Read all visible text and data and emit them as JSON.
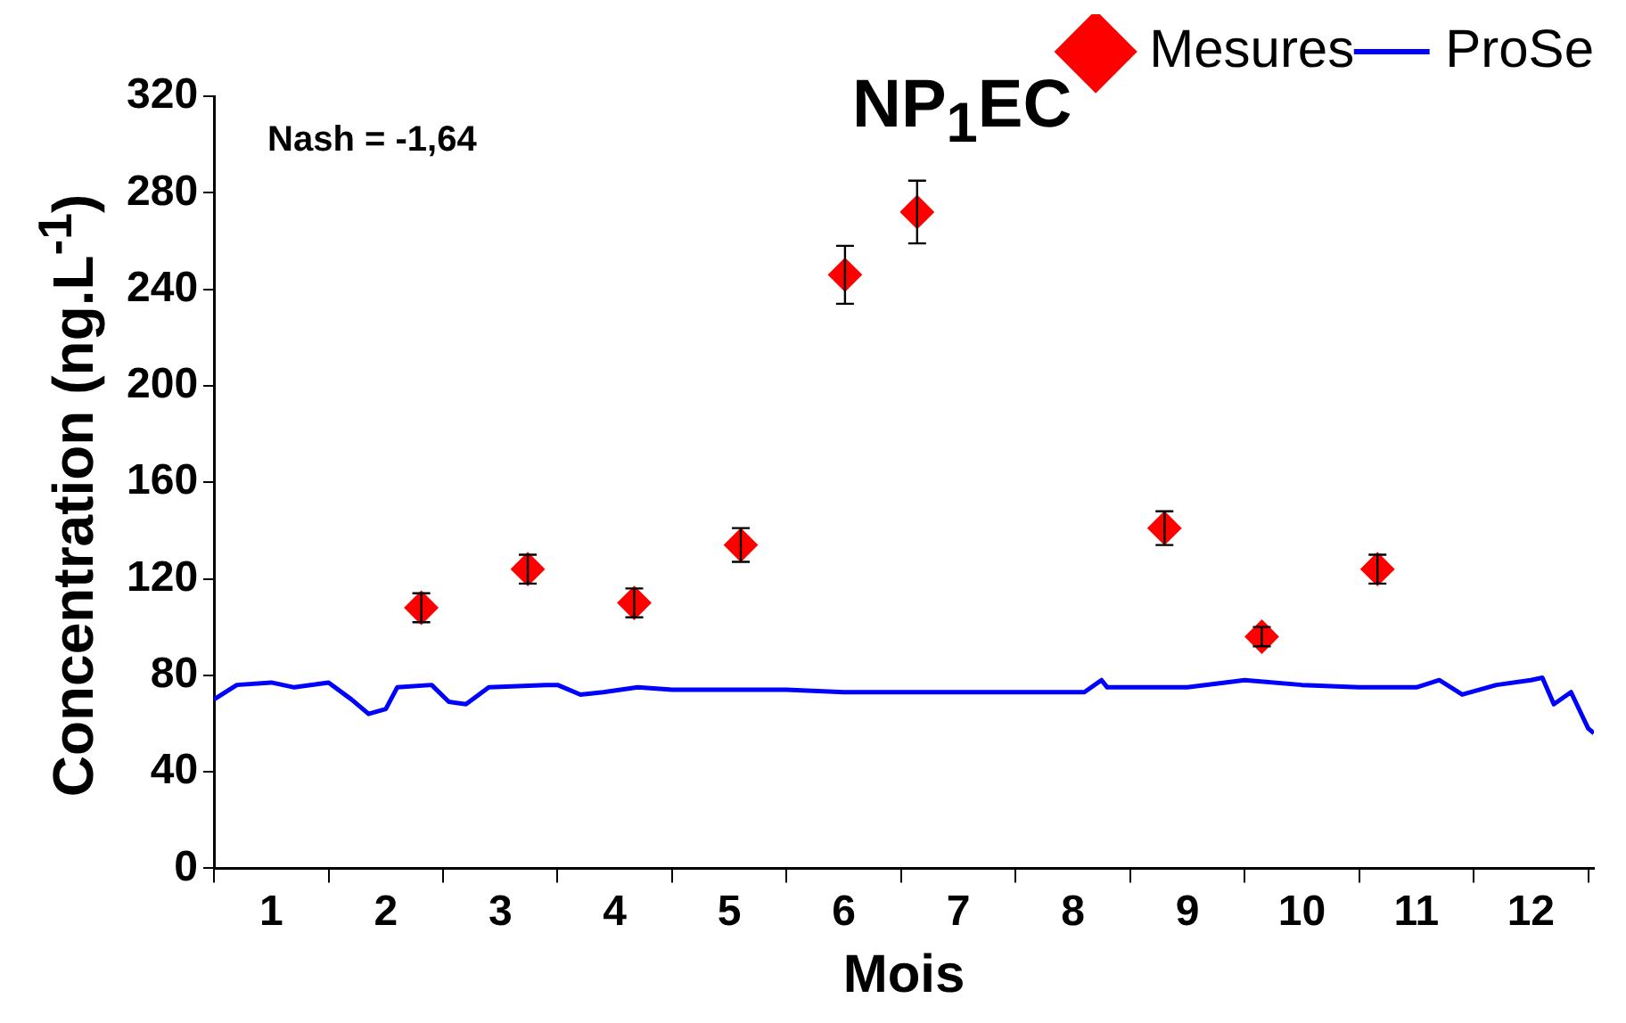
{
  "chart_data": {
    "type": "scatter",
    "title": "NP$_{1}$EC",
    "xlabel": "Mois",
    "ylabel": "Concentration (ng.L$^{-1}$)",
    "annotations": [
      "Nash = -1,64"
    ],
    "xlim": [
      0,
      12.05
    ],
    "ylim": [
      0,
      320
    ],
    "yticks": [
      0,
      40,
      80,
      120,
      160,
      200,
      240,
      280,
      320
    ],
    "xticks": [
      {
        "value": 0,
        "label": null
      },
      {
        "value": 0.5,
        "label": "1"
      },
      {
        "value": 1,
        "label": null
      },
      {
        "value": 1.5,
        "label": "2"
      },
      {
        "value": 2,
        "label": null
      },
      {
        "value": 2.5,
        "label": "3"
      },
      {
        "value": 3,
        "label": null
      },
      {
        "value": 3.5,
        "label": "4"
      },
      {
        "value": 4,
        "label": null
      },
      {
        "value": 4.5,
        "label": "5"
      },
      {
        "value": 5,
        "label": null
      },
      {
        "value": 5.5,
        "label": "6"
      },
      {
        "value": 6,
        "label": null
      },
      {
        "value": 6.5,
        "label": "7"
      },
      {
        "value": 7,
        "label": null
      },
      {
        "value": 7.5,
        "label": "8"
      },
      {
        "value": 8,
        "label": null
      },
      {
        "value": 8.5,
        "label": "9"
      },
      {
        "value": 9,
        "label": null
      },
      {
        "value": 9.5,
        "label": "10"
      },
      {
        "value": 10,
        "label": null
      },
      {
        "value": 10.5,
        "label": "11"
      },
      {
        "value": 11,
        "label": null
      },
      {
        "value": 11.5,
        "label": "12"
      },
      {
        "value": 12,
        "label": null
      }
    ],
    "grid": false,
    "legend": "top right",
    "series": [
      {
        "name": "Mesures",
        "marker": "diamond",
        "color": "#ff0000",
        "x": [
          1.81,
          2.74,
          3.67,
          4.6,
          5.51,
          6.14,
          8.3,
          9.15,
          10.16
        ],
        "values": [
          108,
          124,
          110,
          134,
          246,
          272,
          141,
          96,
          124
        ],
        "errors": [
          6,
          6,
          6,
          7,
          12,
          13,
          7,
          4,
          6
        ]
      },
      {
        "name": "ProSe",
        "type": "line",
        "marker": "none",
        "color": "#0000ff",
        "x": [
          0,
          0.2,
          0.5,
          0.7,
          1.0,
          1.2,
          1.35,
          1.5,
          1.6,
          1.9,
          2.05,
          2.2,
          2.4,
          2.9,
          3.0,
          3.2,
          3.4,
          3.7,
          4.0,
          4.5,
          5.0,
          5.5,
          6.0,
          6.5,
          7.0,
          7.6,
          7.75,
          7.8,
          8.0,
          8.5,
          9.0,
          9.5,
          10.0,
          10.5,
          10.7,
          10.9,
          11.2,
          11.5,
          11.6,
          11.7,
          11.85,
          12.0,
          12.05
        ],
        "values": [
          70,
          76,
          77,
          75,
          77,
          70,
          64,
          66,
          75,
          76,
          69,
          68,
          75,
          76,
          76,
          72,
          73,
          75,
          74,
          74,
          74,
          73,
          73,
          73,
          73,
          73,
          78,
          75,
          75,
          75,
          78,
          76,
          75,
          75,
          78,
          72,
          76,
          78,
          79,
          68,
          73,
          58,
          56
        ]
      }
    ]
  }
}
